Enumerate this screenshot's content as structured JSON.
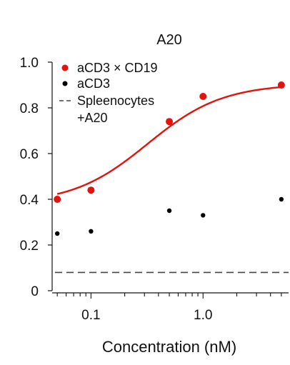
{
  "chart_data": {
    "type": "scatter",
    "title": "A20",
    "xlabel": "Concentration (nM)",
    "ylabel": "",
    "xscale": "log",
    "xlim": [
      0.045,
      5.8
    ],
    "ylim": [
      0,
      1.0
    ],
    "x_ticks": [
      {
        "value": 0.1,
        "label": "0.1"
      },
      {
        "value": 1.0,
        "label": "1.0"
      }
    ],
    "y_ticks": [
      {
        "value": 0,
        "label": "0"
      },
      {
        "value": 0.2,
        "label": "0.2"
      },
      {
        "value": 0.4,
        "label": "0.4"
      },
      {
        "value": 0.6,
        "label": "0.6"
      },
      {
        "value": 0.8,
        "label": "0.8"
      },
      {
        "value": 1.0,
        "label": "1.0"
      }
    ],
    "grid": false,
    "legend_position": "top-left",
    "series": [
      {
        "name": "aCD3 × CD19",
        "color": "#e3120b",
        "kind": "points+fit",
        "x": [
          0.05,
          0.1,
          0.5,
          1.0,
          5.0
        ],
        "y": [
          0.4,
          0.44,
          0.74,
          0.85,
          0.9
        ]
      },
      {
        "name": "aCD3",
        "color": "#000000",
        "kind": "points",
        "x": [
          0.05,
          0.1,
          0.5,
          1.0,
          5.0
        ],
        "y": [
          0.25,
          0.26,
          0.35,
          0.33,
          0.4
        ]
      },
      {
        "name": "Spleenocytes\n+A20",
        "color": "#444444",
        "kind": "hline",
        "y": 0.08
      }
    ],
    "fit": {
      "bottom": 0.38,
      "top": 0.905,
      "ec50": 0.32,
      "hill": 1.3
    }
  }
}
